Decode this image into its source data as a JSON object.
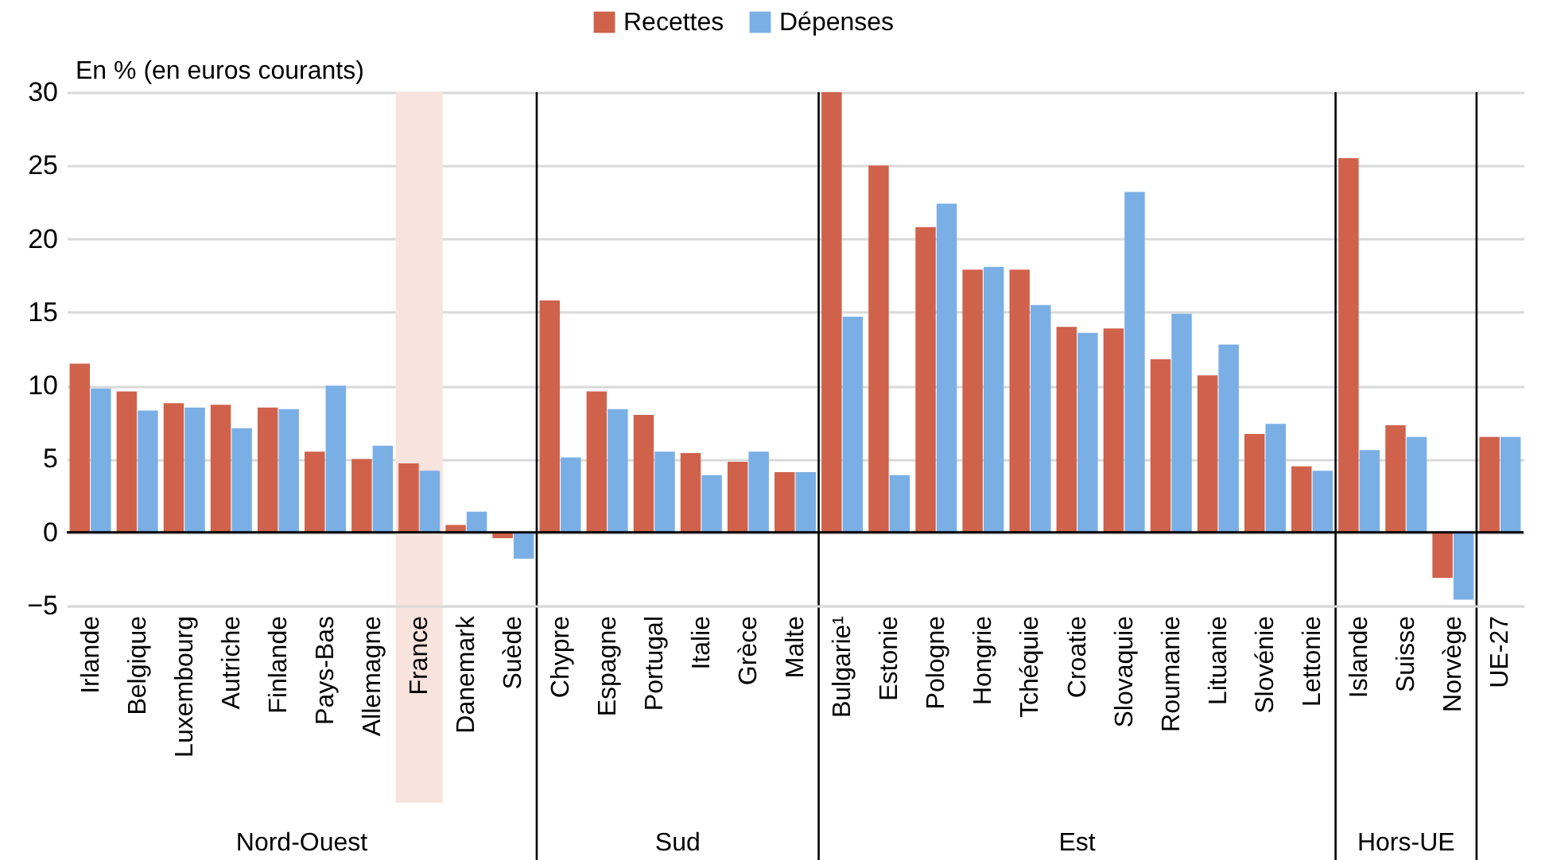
{
  "chart_data": {
    "type": "bar",
    "ylabel": "En % (en euros courants)",
    "categories": [
      "Irlande",
      "Belgique",
      "Luxembourg",
      "Autriche",
      "Finlande",
      "Pays-Bas",
      "Allemagne",
      "France",
      "Danemark",
      "Suède",
      "Chypre",
      "Espagne",
      "Portugal",
      "Italie",
      "Grèce",
      "Malte",
      "Bulgarie¹",
      "Estonie",
      "Pologne",
      "Hongrie",
      "Tchéquie",
      "Croatie",
      "Slovaquie",
      "Roumanie",
      "Lituanie",
      "Slovénie",
      "Lettonie",
      "Islande",
      "Suisse",
      "Norvège",
      "UE-27"
    ],
    "series": [
      {
        "name": "Recettes",
        "color": "#d0624b",
        "values": [
          11.5,
          9.6,
          8.8,
          8.7,
          8.5,
          5.5,
          5.0,
          4.7,
          0.5,
          -0.4,
          15.8,
          9.6,
          8.0,
          5.4,
          4.8,
          4.1,
          30,
          25.0,
          20.8,
          17.9,
          17.9,
          14.0,
          13.9,
          11.8,
          10.7,
          6.7,
          4.5,
          25.5,
          7.3,
          -3.1,
          6.5
        ]
      },
      {
        "name": "Dépenses",
        "color": "#7aafe6",
        "values": [
          9.8,
          8.3,
          8.5,
          7.1,
          8.4,
          10.0,
          5.9,
          4.2,
          1.4,
          -1.8,
          5.1,
          8.4,
          5.5,
          3.9,
          5.5,
          4.1,
          14.7,
          3.9,
          22.4,
          18.1,
          15.5,
          13.6,
          23.2,
          14.9,
          12.8,
          7.4,
          4.2,
          5.6,
          6.5,
          -4.6,
          6.5
        ]
      }
    ],
    "ylim": [
      -5,
      30
    ],
    "yticks": [
      -5,
      0,
      5,
      10,
      15,
      20,
      25,
      30
    ],
    "grid": "y",
    "legend": "top",
    "ref_lines": [
      {
        "axis": "y",
        "value": 0,
        "color": "#000000"
      }
    ],
    "bands": [
      {
        "axis": "x",
        "from": "France",
        "to": "France",
        "color": "#f9e3dd"
      }
    ],
    "annotations": [
      "Nord-Ouest",
      "Sud",
      "Est",
      "Hors-UE"
    ]
  }
}
